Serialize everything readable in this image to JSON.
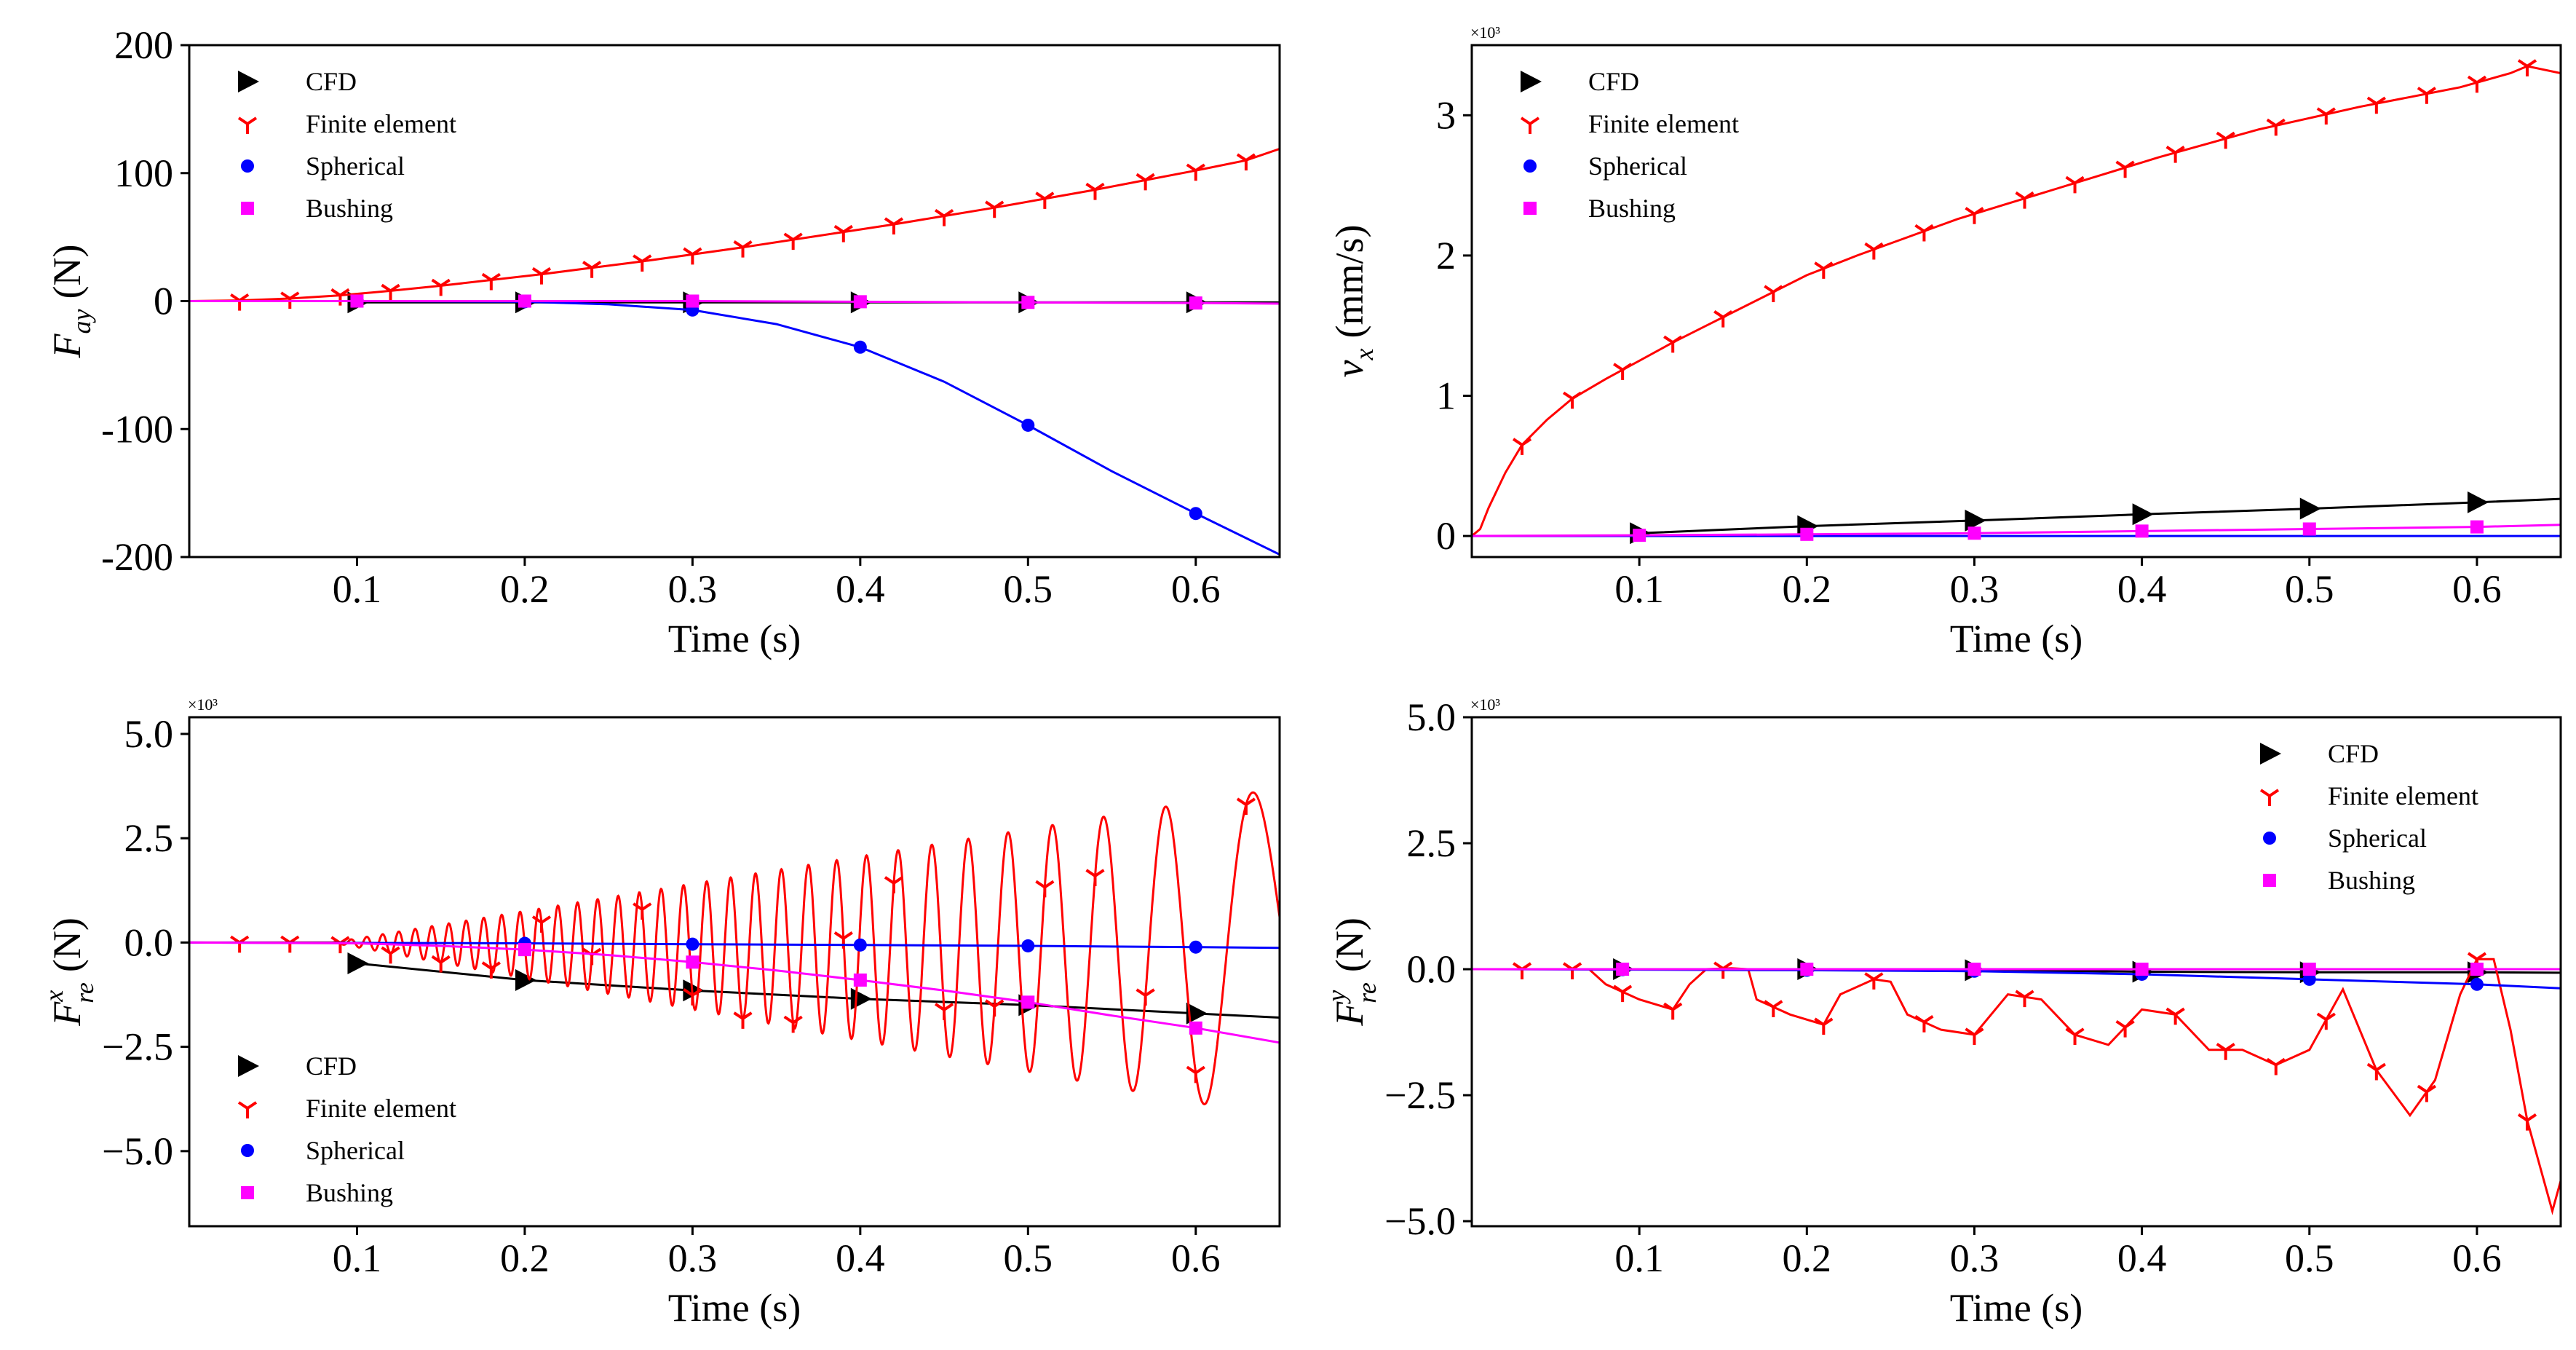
{
  "colors": {
    "cfd": "#000000",
    "finite_element": "#ff0000",
    "spherical": "#0000ff",
    "bushing": "#ff00ff"
  },
  "chart_data": [
    {
      "id": "fay",
      "type": "line",
      "xlabel": "Time (s)",
      "ylabel_main": "F",
      "ylabel_sub": "ay",
      "ylabel_unit": "(N)",
      "exponent_label": "",
      "xlim": [
        0.0,
        0.65
      ],
      "ylim": [
        -200,
        200
      ],
      "x_ticks": [
        0.1,
        0.2,
        0.3,
        0.4,
        0.5,
        0.6
      ],
      "x_tick_labels": [
        "0.1",
        "0.2",
        "0.3",
        "0.4",
        "0.5",
        "0.6"
      ],
      "y_ticks": [
        -200,
        -100,
        0,
        100,
        200
      ],
      "y_tick_labels": [
        "-200",
        "-100",
        "0",
        "100",
        "200"
      ],
      "legend_position": "top-left",
      "legend": [
        "CFD",
        "Finite element",
        "Spherical",
        "Bushing"
      ],
      "series": [
        {
          "name": "CFD",
          "key": "cfd",
          "marker": "triangle",
          "x": [
            0.1,
            0.2,
            0.3,
            0.4,
            0.5,
            0.6,
            0.65
          ],
          "y": [
            -1,
            -1,
            -1,
            -1,
            -1,
            -1,
            -1
          ],
          "marker_x": [
            0.1,
            0.2,
            0.3,
            0.4,
            0.5,
            0.6
          ]
        },
        {
          "name": "Finite element",
          "key": "finite_element",
          "marker": "tri_down",
          "x": [
            0.0,
            0.03,
            0.06,
            0.09,
            0.12,
            0.15,
            0.18,
            0.21,
            0.24,
            0.27,
            0.3,
            0.33,
            0.36,
            0.39,
            0.42,
            0.45,
            0.48,
            0.51,
            0.54,
            0.57,
            0.6,
            0.63,
            0.65
          ],
          "y": [
            0,
            0.5,
            2,
            4.5,
            8,
            12,
            16.5,
            21,
            26,
            31,
            36.5,
            42,
            48,
            54,
            60,
            66.5,
            73,
            80,
            87,
            94.5,
            102,
            110,
            119
          ],
          "marker_x": [
            0.03,
            0.06,
            0.09,
            0.12,
            0.15,
            0.18,
            0.21,
            0.24,
            0.27,
            0.3,
            0.33,
            0.36,
            0.39,
            0.42,
            0.45,
            0.48,
            0.51,
            0.54,
            0.57,
            0.6,
            0.63
          ]
        },
        {
          "name": "Spherical",
          "key": "spherical",
          "marker": "circle",
          "x": [
            0.0,
            0.1,
            0.15,
            0.2,
            0.25,
            0.3,
            0.35,
            0.4,
            0.45,
            0.5,
            0.55,
            0.6,
            0.65
          ],
          "y": [
            0,
            0,
            -0.2,
            -0.5,
            -2.5,
            -7,
            -18,
            -36,
            -63,
            -97,
            -133,
            -166,
            -198
          ],
          "marker_x": [
            0.1,
            0.2,
            0.3,
            0.4,
            0.5,
            0.6
          ]
        },
        {
          "name": "Bushing",
          "key": "bushing",
          "marker": "square",
          "x": [
            0.0,
            0.1,
            0.2,
            0.3,
            0.4,
            0.5,
            0.6,
            0.65
          ],
          "y": [
            0,
            0,
            0,
            0,
            -0.5,
            -1,
            -1.5,
            -2
          ],
          "marker_x": [
            0.1,
            0.2,
            0.3,
            0.4,
            0.5,
            0.6
          ]
        }
      ]
    },
    {
      "id": "vx",
      "type": "line",
      "xlabel": "Time (s)",
      "ylabel_main": "v",
      "ylabel_sub": "x",
      "ylabel_unit": "(mm/s)",
      "exponent_label": "×10³",
      "xlim": [
        0.0,
        0.65
      ],
      "ylim": [
        -0.15,
        3.5
      ],
      "x_ticks": [
        0.1,
        0.2,
        0.3,
        0.4,
        0.5,
        0.6
      ],
      "x_tick_labels": [
        "0.1",
        "0.2",
        "0.3",
        "0.4",
        "0.5",
        "0.6"
      ],
      "y_ticks": [
        0,
        1,
        2,
        3
      ],
      "y_tick_labels": [
        "0",
        "1",
        "2",
        "3"
      ],
      "legend_position": "top-left",
      "legend": [
        "CFD",
        "Finite element",
        "Spherical",
        "Bushing"
      ],
      "series": [
        {
          "name": "CFD",
          "key": "cfd",
          "marker": "triangle",
          "x": [
            0.1,
            0.2,
            0.3,
            0.4,
            0.5,
            0.6,
            0.65
          ],
          "y": [
            0.02,
            0.07,
            0.11,
            0.155,
            0.195,
            0.24,
            0.265
          ],
          "marker_x": [
            0.1,
            0.2,
            0.3,
            0.4,
            0.5,
            0.6
          ]
        },
        {
          "name": "Finite element",
          "key": "finite_element",
          "marker": "tri_down",
          "x": [
            0.0,
            0.005,
            0.01,
            0.02,
            0.03,
            0.045,
            0.06,
            0.08,
            0.1,
            0.12,
            0.14,
            0.16,
            0.18,
            0.2,
            0.23,
            0.26,
            0.29,
            0.32,
            0.35,
            0.38,
            0.41,
            0.44,
            0.47,
            0.5,
            0.53,
            0.56,
            0.59,
            0.62,
            0.63,
            0.65
          ],
          "y": [
            0,
            0.05,
            0.2,
            0.45,
            0.65,
            0.83,
            0.98,
            1.12,
            1.25,
            1.38,
            1.5,
            1.62,
            1.74,
            1.86,
            2.0,
            2.13,
            2.26,
            2.37,
            2.48,
            2.59,
            2.7,
            2.8,
            2.9,
            2.98,
            3.06,
            3.13,
            3.2,
            3.3,
            3.35,
            3.3
          ],
          "marker_x": [
            0.03,
            0.06,
            0.09,
            0.12,
            0.15,
            0.18,
            0.21,
            0.24,
            0.27,
            0.3,
            0.33,
            0.36,
            0.39,
            0.42,
            0.45,
            0.48,
            0.51,
            0.54,
            0.57,
            0.6,
            0.63
          ]
        },
        {
          "name": "Spherical",
          "key": "spherical",
          "marker": "circle",
          "x": [
            0.0,
            0.65
          ],
          "y": [
            0,
            0
          ],
          "marker_x": []
        },
        {
          "name": "Bushing",
          "key": "bushing",
          "marker": "square",
          "x": [
            0.0,
            0.1,
            0.2,
            0.3,
            0.4,
            0.5,
            0.6,
            0.65
          ],
          "y": [
            0,
            0.005,
            0.012,
            0.02,
            0.035,
            0.05,
            0.065,
            0.08
          ],
          "marker_x": [
            0.1,
            0.2,
            0.3,
            0.4,
            0.5,
            0.6
          ]
        }
      ]
    },
    {
      "id": "frex",
      "type": "line",
      "xlabel": "Time (s)",
      "ylabel_main": "F",
      "ylabel_sub": "re",
      "ylabel_sup": "x",
      "ylabel_unit": "(N)",
      "exponent_label": "×10³",
      "xlim": [
        0.0,
        0.65
      ],
      "ylim": [
        -6.8,
        5.4
      ],
      "x_ticks": [
        0.1,
        0.2,
        0.3,
        0.4,
        0.5,
        0.6
      ],
      "x_tick_labels": [
        "0.1",
        "0.2",
        "0.3",
        "0.4",
        "0.5",
        "0.6"
      ],
      "y_ticks": [
        -5.0,
        -2.5,
        0.0,
        2.5,
        5.0
      ],
      "y_tick_labels": [
        "−5.0",
        "−2.5",
        "0.0",
        "2.5",
        "5.0"
      ],
      "legend_position": "bottom-left",
      "legend": [
        "CFD",
        "Finite element",
        "Spherical",
        "Bushing"
      ],
      "series": [
        {
          "name": "CFD",
          "key": "cfd",
          "marker": "triangle",
          "x": [
            0.1,
            0.2,
            0.3,
            0.4,
            0.5,
            0.6,
            0.65
          ],
          "y": [
            -0.5,
            -0.9,
            -1.15,
            -1.35,
            -1.5,
            -1.7,
            -1.8
          ],
          "marker_x": [
            0.1,
            0.2,
            0.3,
            0.4,
            0.5,
            0.6
          ]
        },
        {
          "name": "Finite element",
          "key": "finite_element",
          "marker": "tri_down",
          "generator": "oscillation",
          "onset": 0.085,
          "amp_rate": 7.0,
          "freq_start": 110,
          "freq_end": 12,
          "x": [],
          "y": [],
          "marker_x": [
            0.03,
            0.06,
            0.09,
            0.12,
            0.15,
            0.18,
            0.21,
            0.24,
            0.27,
            0.3,
            0.33,
            0.36,
            0.39,
            0.42,
            0.45,
            0.48,
            0.51,
            0.54,
            0.57,
            0.6,
            0.63
          ]
        },
        {
          "name": "Spherical",
          "key": "spherical",
          "marker": "circle",
          "x": [
            0.0,
            0.2,
            0.3,
            0.4,
            0.5,
            0.6,
            0.65
          ],
          "y": [
            0,
            -0.02,
            -0.04,
            -0.06,
            -0.08,
            -0.11,
            -0.13
          ],
          "marker_x": [
            0.2,
            0.3,
            0.4,
            0.5,
            0.6
          ]
        },
        {
          "name": "Bushing",
          "key": "bushing",
          "marker": "square",
          "x": [
            0.0,
            0.1,
            0.15,
            0.2,
            0.25,
            0.3,
            0.35,
            0.4,
            0.45,
            0.5,
            0.55,
            0.6,
            0.65
          ],
          "y": [
            0,
            -0.02,
            -0.08,
            -0.17,
            -0.3,
            -0.47,
            -0.67,
            -0.9,
            -1.15,
            -1.43,
            -1.75,
            -2.05,
            -2.4
          ],
          "marker_x": [
            0.2,
            0.3,
            0.4,
            0.5,
            0.6
          ]
        }
      ]
    },
    {
      "id": "frey",
      "type": "line",
      "xlabel": "Time (s)",
      "ylabel_main": "F",
      "ylabel_sub": "re",
      "ylabel_sup": "y",
      "ylabel_unit": "(N)",
      "exponent_label": "×10³",
      "xlim": [
        0.0,
        0.65
      ],
      "ylim": [
        -5.1,
        5.0
      ],
      "x_ticks": [
        0.1,
        0.2,
        0.3,
        0.4,
        0.5,
        0.6
      ],
      "x_tick_labels": [
        "0.1",
        "0.2",
        "0.3",
        "0.4",
        "0.5",
        "0.6"
      ],
      "y_ticks": [
        -5.0,
        -2.5,
        0.0,
        2.5,
        5.0
      ],
      "y_tick_labels": [
        "−5.0",
        "−2.5",
        "0.0",
        "2.5",
        "5.0"
      ],
      "legend_position": "top-right",
      "legend": [
        "CFD",
        "Finite element",
        "Spherical",
        "Bushing"
      ],
      "series": [
        {
          "name": "CFD",
          "key": "cfd",
          "marker": "triangle",
          "x": [
            0.09,
            0.2,
            0.3,
            0.4,
            0.5,
            0.6,
            0.65
          ],
          "y": [
            0,
            0,
            -0.02,
            -0.05,
            -0.06,
            -0.06,
            -0.07
          ],
          "marker_x": [
            0.09,
            0.2,
            0.3,
            0.4,
            0.5,
            0.6
          ]
        },
        {
          "name": "Finite element",
          "key": "finite_element",
          "marker": "tri_down",
          "x": [
            0.0,
            0.07,
            0.08,
            0.1,
            0.12,
            0.13,
            0.14,
            0.155,
            0.165,
            0.17,
            0.19,
            0.21,
            0.22,
            0.24,
            0.25,
            0.26,
            0.28,
            0.3,
            0.32,
            0.34,
            0.36,
            0.38,
            0.4,
            0.42,
            0.44,
            0.46,
            0.48,
            0.5,
            0.52,
            0.54,
            0.56,
            0.575,
            0.59,
            0.6,
            0.61,
            0.62,
            0.63,
            0.645,
            0.65
          ],
          "y": [
            0,
            0,
            -0.3,
            -0.6,
            -0.8,
            -0.3,
            0,
            0.02,
            0,
            -0.6,
            -0.9,
            -1.1,
            -0.5,
            -0.2,
            -0.25,
            -0.9,
            -1.2,
            -1.3,
            -0.5,
            -0.6,
            -1.3,
            -1.5,
            -0.8,
            -0.9,
            -1.6,
            -1.6,
            -1.9,
            -1.6,
            -0.4,
            -2.0,
            -2.9,
            -2.2,
            -0.5,
            0.2,
            0.2,
            -1.2,
            -3.0,
            -4.8,
            -4.2
          ],
          "marker_x": [
            0.03,
            0.06,
            0.09,
            0.12,
            0.15,
            0.18,
            0.21,
            0.24,
            0.27,
            0.3,
            0.33,
            0.36,
            0.39,
            0.42,
            0.45,
            0.48,
            0.51,
            0.54,
            0.57,
            0.6,
            0.63
          ]
        },
        {
          "name": "Spherical",
          "key": "spherical",
          "marker": "circle",
          "x": [
            0.0,
            0.2,
            0.3,
            0.4,
            0.5,
            0.6,
            0.65
          ],
          "y": [
            0,
            -0.02,
            -0.04,
            -0.1,
            -0.2,
            -0.3,
            -0.38
          ],
          "marker_x": [
            0.09,
            0.2,
            0.3,
            0.4,
            0.5,
            0.6
          ]
        },
        {
          "name": "Bushing",
          "key": "bushing",
          "marker": "square",
          "x": [
            0.0,
            0.65
          ],
          "y": [
            0,
            0
          ],
          "marker_x": [
            0.09,
            0.2,
            0.3,
            0.4,
            0.5,
            0.6
          ]
        }
      ]
    }
  ]
}
